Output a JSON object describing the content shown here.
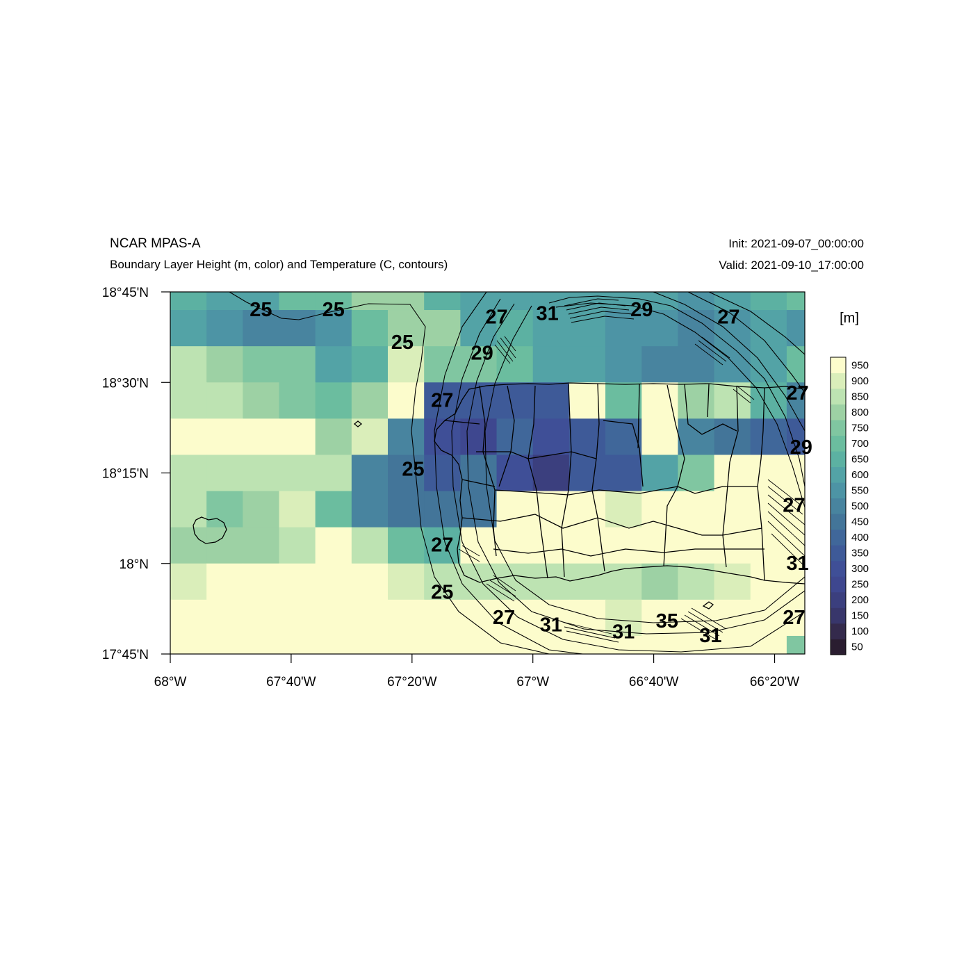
{
  "header": {
    "left_title": "NCAR MPAS-A",
    "left_subtitle": "Boundary Layer Height (m, color) and Temperature (C, contours)",
    "right_title": "Init: 2021-09-07_00:00:00",
    "right_subtitle": "Valid: 2021-09-10_17:00:00"
  },
  "chart_data": {
    "type": "heatmap",
    "title": "Boundary Layer Height (m, color) and Temperature (C, contours)",
    "extent": {
      "lon": [
        -68.0,
        -66.25
      ],
      "lat": [
        17.75,
        18.75
      ]
    },
    "lon_ticks": [
      {
        "value": -68.0,
        "label": "68°W"
      },
      {
        "value": -67.6667,
        "label": "67°40'W"
      },
      {
        "value": -67.3333,
        "label": "67°20'W"
      },
      {
        "value": -67.0,
        "label": "67°W"
      },
      {
        "value": -66.6667,
        "label": "66°40'W"
      },
      {
        "value": -66.3333,
        "label": "66°20'W"
      }
    ],
    "lat_ticks": [
      {
        "value": 18.75,
        "label": "18°45'N"
      },
      {
        "value": 18.5,
        "label": "18°30'N"
      },
      {
        "value": 18.25,
        "label": "18°15'N"
      },
      {
        "value": 18.0,
        "label": "18°N"
      },
      {
        "value": 17.75,
        "label": "17°45'N"
      }
    ],
    "colorbar": {
      "unit": "[m]",
      "levels": [
        50,
        100,
        150,
        200,
        250,
        300,
        350,
        400,
        450,
        500,
        550,
        600,
        650,
        700,
        750,
        800,
        850,
        900,
        950
      ],
      "colors": [
        "#2a1d30",
        "#342a4c",
        "#38366b",
        "#3b3f7e",
        "#3e478f",
        "#3f4f97",
        "#3e5a98",
        "#40679a",
        "#437599",
        "#48849f",
        "#4d94a5",
        "#53a3a6",
        "#5cb1a2",
        "#6bbd9f",
        "#80c6a1",
        "#9dd1a4",
        "#bde3b2",
        "#daeeba",
        "#fcfccc"
      ]
    },
    "grid": {
      "lon_edges": [
        -68.0,
        -67.9,
        -67.8,
        -67.7,
        -67.6,
        -67.5,
        -67.4,
        -67.3,
        -67.2,
        -67.1,
        -67.0,
        -66.9,
        -66.8,
        -66.7,
        -66.6,
        -66.5,
        -66.4,
        -66.3,
        -66.25
      ],
      "lat_edges": [
        18.75,
        18.7,
        18.6,
        18.5,
        18.4,
        18.3,
        18.2,
        18.1,
        18.0,
        17.9,
        17.8,
        17.75
      ],
      "values_m": [
        [
          650,
          600,
          600,
          700,
          700,
          800,
          800,
          650,
          600,
          600,
          600,
          600,
          600,
          600,
          550,
          600,
          650,
          700
        ],
        [
          600,
          550,
          500,
          500,
          550,
          700,
          800,
          800,
          600,
          650,
          600,
          600,
          550,
          550,
          500,
          550,
          600,
          550
        ],
        [
          850,
          800,
          750,
          750,
          600,
          650,
          900,
          750,
          750,
          700,
          600,
          600,
          550,
          500,
          500,
          550,
          600,
          700
        ],
        [
          850,
          850,
          800,
          750,
          700,
          800,
          950,
          350,
          350,
          350,
          350,
          950,
          700,
          950,
          800,
          850,
          650,
          500
        ],
        [
          950,
          950,
          950,
          950,
          800,
          900,
          500,
          300,
          250,
          400,
          300,
          350,
          400,
          950,
          500,
          450,
          400,
          350
        ],
        [
          850,
          850,
          850,
          850,
          850,
          500,
          450,
          350,
          450,
          300,
          200,
          350,
          350,
          600,
          750,
          950,
          950,
          950
        ],
        [
          850,
          750,
          800,
          900,
          700,
          500,
          450,
          450,
          450,
          950,
          950,
          950,
          900,
          950,
          950,
          950,
          950,
          950
        ],
        [
          800,
          800,
          800,
          850,
          950,
          850,
          700,
          650,
          950,
          950,
          950,
          950,
          950,
          950,
          950,
          950,
          950,
          950
        ],
        [
          900,
          950,
          950,
          950,
          950,
          950,
          900,
          850,
          850,
          850,
          850,
          850,
          850,
          800,
          850,
          900,
          950,
          950
        ],
        [
          950,
          950,
          950,
          950,
          950,
          950,
          950,
          950,
          950,
          950,
          950,
          950,
          900,
          950,
          950,
          950,
          950,
          950
        ],
        [
          950,
          950,
          950,
          950,
          950,
          950,
          950,
          950,
          950,
          950,
          950,
          950,
          950,
          950,
          950,
          950,
          950,
          750
        ]
      ]
    },
    "contour_labels": [
      {
        "text": "25",
        "lon": -67.75,
        "lat": 18.7
      },
      {
        "text": "25",
        "lon": -67.55,
        "lat": 18.7
      },
      {
        "text": "25",
        "lon": -67.36,
        "lat": 18.61
      },
      {
        "text": "25",
        "lon": -67.33,
        "lat": 18.26
      },
      {
        "text": "25",
        "lon": -67.25,
        "lat": 17.92
      },
      {
        "text": "27",
        "lon": -67.1,
        "lat": 18.68
      },
      {
        "text": "27",
        "lon": -67.25,
        "lat": 18.45
      },
      {
        "text": "27",
        "lon": -67.25,
        "lat": 18.05
      },
      {
        "text": "27",
        "lon": -67.08,
        "lat": 17.85
      },
      {
        "text": "27",
        "lon": -66.46,
        "lat": 18.68
      },
      {
        "text": "27",
        "lon": -66.27,
        "lat": 18.47
      },
      {
        "text": "27",
        "lon": -66.28,
        "lat": 18.16
      },
      {
        "text": "27",
        "lon": -66.28,
        "lat": 17.85
      },
      {
        "text": "29",
        "lon": -67.14,
        "lat": 18.58
      },
      {
        "text": "29",
        "lon": -66.7,
        "lat": 18.7
      },
      {
        "text": "29",
        "lon": -66.26,
        "lat": 18.32
      },
      {
        "text": "31",
        "lon": -66.96,
        "lat": 18.69
      },
      {
        "text": "31",
        "lon": -66.95,
        "lat": 17.83
      },
      {
        "text": "31",
        "lon": -66.75,
        "lat": 17.81
      },
      {
        "text": "31",
        "lon": -66.51,
        "lat": 17.8
      },
      {
        "text": "31",
        "lon": -66.27,
        "lat": 18.0
      },
      {
        "text": "35",
        "lon": -66.63,
        "lat": 17.84
      }
    ]
  }
}
